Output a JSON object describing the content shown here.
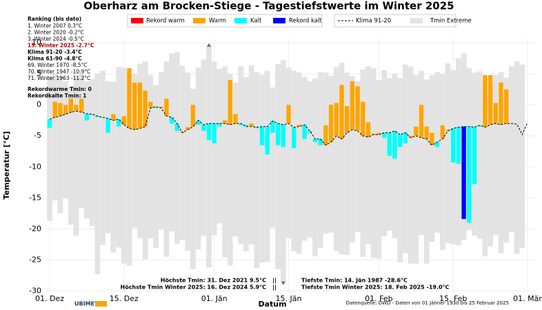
{
  "chart_data": {
    "type": "bar",
    "title": "Oberharz am Brocken-Stiege - Tagestiefstwerte im Winter 2025",
    "x_label": "Datum",
    "y_label": "Temperatur [°C]",
    "categories": [
      "01. Dez",
      null,
      null,
      null,
      null,
      null,
      null,
      null,
      null,
      null,
      null,
      null,
      null,
      null,
      "15. Dez",
      null,
      null,
      null,
      null,
      null,
      null,
      null,
      null,
      null,
      null,
      null,
      null,
      null,
      null,
      null,
      null,
      "01. Jän",
      null,
      null,
      null,
      null,
      null,
      null,
      null,
      null,
      null,
      null,
      null,
      null,
      null,
      "15. Jän",
      null,
      null,
      null,
      null,
      null,
      null,
      null,
      null,
      null,
      null,
      null,
      null,
      null,
      null,
      null,
      null,
      "01. Feb",
      null,
      null,
      null,
      null,
      null,
      null,
      null,
      null,
      null,
      null,
      null,
      null,
      null,
      "15. Feb",
      null,
      null,
      null,
      null,
      null,
      null,
      null,
      null,
      null,
      null,
      null,
      null,
      null,
      "01. Mär"
    ],
    "ylim": [
      -30.3,
      10.8
    ],
    "yticks": [
      -30,
      -25,
      -20,
      -15,
      -10,
      -5,
      0,
      5,
      10
    ],
    "grid": true,
    "legend": [
      {
        "name": "Rekord warm",
        "color": "#ff0000"
      },
      {
        "name": "Warm",
        "color": "#ffa500"
      },
      {
        "name": "Kalt",
        "color": "#00ffff"
      },
      {
        "name": "Rekord kalt",
        "color": "#0000ff"
      }
    ],
    "extreme": {
      "name": "Tmin Extreme",
      "color": "#e3e3e3",
      "max": [
        4.5,
        5,
        4.6,
        3.8,
        2.9,
        4.5,
        5,
        3.8,
        4.1,
        5.1,
        5.5,
        3.8,
        3.7,
        6.1,
        6,
        5,
        5,
        6.6,
        7,
        4.8,
        3.2,
        5.3,
        7,
        8.3,
        8.5,
        6.3,
        5.2,
        2.6,
        6,
        7.3,
        9.5,
        7,
        5.8,
        6.2,
        5,
        3.6,
        6.2,
        4.5,
        6.4,
        5.3,
        4.8,
        5.5,
        2.8,
        6.6,
        7.2,
        6,
        5.5,
        5.2,
        4.5,
        3.8,
        4.3,
        5.3,
        5.2,
        4.7,
        6.1,
        6.8,
        5.2,
        4.6,
        3.8,
        5.7,
        6.2,
        5.9,
        4,
        5.6,
        4.3,
        5,
        4.3,
        6.5,
        6.2,
        4.8,
        5.5,
        4.1,
        4.8,
        5.3,
        5,
        6.7,
        5.6,
        7.5,
        8.3,
        5.9,
        5.2,
        5.4,
        4.1,
        3.5,
        4.8,
        5.3,
        4.4,
        6.2,
        7,
        6.5,
        null
      ],
      "min": [
        -18.7,
        -15.4,
        -17.5,
        -15.1,
        -19.3,
        -21.1,
        -16.6,
        -18.3,
        -19.5,
        -27.3,
        -22.6,
        -20.7,
        -23.8,
        -23,
        -25.6,
        -25.9,
        -19.8,
        -21.5,
        -24.9,
        -21.5,
        -23.1,
        -20.1,
        -24.5,
        -20.4,
        -22.4,
        -21.8,
        -23.5,
        -26.5,
        -23.3,
        -21.1,
        -26.2,
        -21,
        -19.1,
        -24.6,
        -25.9,
        -21.2,
        -22.5,
        -23.6,
        -22.5,
        -26.3,
        -25.4,
        -25.3,
        -19.8,
        -26.5,
        -28.6,
        -21.5,
        -23.6,
        -24,
        -21.9,
        -21.4,
        -24.4,
        -23.1,
        -20.8,
        -20.6,
        -23.6,
        -24.1,
        -24.2,
        -22.2,
        -20.5,
        -24.5,
        -22.5,
        -24.7,
        -24.8,
        -21.2,
        -20.3,
        -21.5,
        -25.4,
        -23.9,
        -25.6,
        -25.6,
        -21,
        -25.6,
        -22.1,
        -20.6,
        -23.4,
        -22.3,
        -22.5,
        -22.6,
        -21.8,
        -20.2,
        -21.1,
        -21.6,
        -24.4,
        -22.8,
        -21,
        -23.9,
        -22.2,
        -20.5,
        -24,
        -23.1,
        null
      ]
    },
    "climate": {
      "name": "Klima 91-20",
      "color": "#000000",
      "values": [
        -2.3,
        -2,
        -1.8,
        -1.5,
        -1.2,
        -1,
        -1.2,
        -1.4,
        -1.5,
        -1.8,
        -2,
        -2.2,
        -2.5,
        -2.3,
        -3.2,
        -3.8,
        -4,
        -3.8,
        -3.5,
        -0.5,
        -0.3,
        -0.5,
        -1.8,
        -2,
        -3,
        -4.5,
        -4,
        -3.5,
        -2.5,
        -3.2,
        -3,
        -3,
        -3,
        -3,
        -3.2,
        -3,
        -3,
        -3.5,
        -3.5,
        -3.6,
        -3.5,
        -3.5,
        -2.6,
        -3,
        -3.2,
        -3,
        -3.6,
        -3.5,
        -3.2,
        -4.2,
        -5.5,
        -5.5,
        -6.5,
        -6,
        -5,
        -5.5,
        -4.5,
        -4,
        -4.2,
        -5,
        -5.2,
        -4.8,
        -4.8,
        -4.5,
        -4.5,
        -4.2,
        -4.8,
        -4.5,
        -5.3,
        -5,
        -5.3,
        -5.5,
        -6.5,
        -6,
        -5.5,
        -4.2,
        -3.8,
        -3.6,
        -3.5,
        -3.5,
        -3.6,
        -3.3,
        -3.6,
        -3.2,
        -3,
        -3.2,
        -3,
        -3,
        -3.1,
        -4.8,
        -2.8
      ]
    },
    "tmin": {
      "values": [
        -3.7,
        0.5,
        0.3,
        0,
        1,
        0,
        1,
        -2.5,
        -1.6,
        -2,
        -2.1,
        -4.5,
        -1.5,
        -3.5,
        -1.8,
        5.9,
        3.6,
        3.6,
        2.3,
        0.5,
        -0.5,
        -0.3,
        1,
        -3,
        -4.2,
        -4.3,
        -3.6,
        0,
        -3.2,
        -4.2,
        -5.7,
        -6.2,
        -3.5,
        -2.5,
        4,
        -1.5,
        -3.3,
        -3.2,
        -3,
        -3.8,
        -6.5,
        -8,
        -4.5,
        -6.5,
        -6.8,
        0,
        -7,
        -3.2,
        -5.5,
        -4.5,
        -6,
        -6.5,
        -3.3,
        0,
        0.3,
        3.2,
        -0.2,
        3.8,
        3,
        0.5,
        -2.8,
        -4.6,
        -4.5,
        -5.3,
        -8.2,
        -8.7,
        -6.8,
        -6.2,
        -5,
        -3.5,
        0,
        -3.5,
        -4.5,
        -6.8,
        -3.3,
        -4,
        -9.3,
        -9.5,
        -18.4,
        -19,
        -12.8,
        -3.5,
        4.8,
        4.8,
        0.3,
        3.6,
        2.5,
        null,
        null,
        null,
        null
      ],
      "colors": [
        "#00ffff",
        "#ffa500",
        "#ffa500",
        "#ffa500",
        "#ffa500",
        "#ffa500",
        "#ffa500",
        "#00ffff",
        "#00ffff",
        "#00ffff",
        "#00ffff",
        "#00ffff",
        "#ffa500",
        "#00ffff",
        "#ffa500",
        "#ffa500",
        "#ffa500",
        "#ffa500",
        "#ffa500",
        "#ffa500",
        "#00ffff",
        "#ffa500",
        "#ffa500",
        "#00ffff",
        "#00ffff",
        "#ffa500",
        "#ffa500",
        "#ffa500",
        "#00ffff",
        "#00ffff",
        "#00ffff",
        "#00ffff",
        "#00ffff",
        "#ffa500",
        "#ffa500",
        "#ffa500",
        "#00ffff",
        "#00ffff",
        "#ffa500",
        "#00ffff",
        "#00ffff",
        "#00ffff",
        "#00ffff",
        "#00ffff",
        "#00ffff",
        "#ffa500",
        "#00ffff",
        "#ffa500",
        "#00ffff",
        "#00ffff",
        "#00ffff",
        "#00ffff",
        "#ffa500",
        "#ffa500",
        "#ffa500",
        "#ffa500",
        "#ffa500",
        "#ffa500",
        "#ffa500",
        "#ffa500",
        "#ffa500",
        "#ffa500",
        "#ffa500",
        "#00ffff",
        "#00ffff",
        "#00ffff",
        "#00ffff",
        "#00ffff",
        "#ffa500",
        "#ffa500",
        "#ffa500",
        "#ffa500",
        "#ffa500",
        "#00ffff",
        "#ffa500",
        "#ffa500",
        "#00ffff",
        "#00ffff",
        "#0000ff",
        "#00ffff",
        "#00ffff",
        "#00ffff",
        "#ffa500",
        "#ffa500",
        "#ffa500",
        "#ffa500",
        "#ffa500",
        null,
        null,
        null,
        null
      ]
    },
    "ranking": {
      "title": "Ranking (bis dato)",
      "lines": [
        "1.  Winter 2007  0.3°C",
        "2.  Winter 2020  -0.2°C",
        "3.  Winter 2024  -0.5°C",
        "15.  Winter 2025  -2.7°C",
        "Klima 91-20 -3.4°C",
        "Klima 61-90 -4.8°C",
        "69.  Winter 1970  -8.5°C",
        "70.  Winter 1947  -10.9°C",
        "71.  Winter 1963  -11.2°C"
      ],
      "records": [
        "Rekordwarme Tmin: 0",
        "Rekordkalte Tmin: 1"
      ]
    },
    "annotations": {
      "high": [
        "Höchste Tmin: 31. Dez 2021 9.5°C",
        "Höchste Tmin Winter 2025: 16. Dez 2024 5.9°C"
      ],
      "separator": "||",
      "low": [
        "Tiefste Tmin: 14. Jän 1987 -28.6°C",
        "Tiefste Tmin Winter 2025: 18. Feb 2025 -19.0°C"
      ]
    },
    "source": "Datenquelle: DWD - Daten von 01 Jänner 1930 bis 25 Februar 2025",
    "logo": "UBIMET"
  }
}
